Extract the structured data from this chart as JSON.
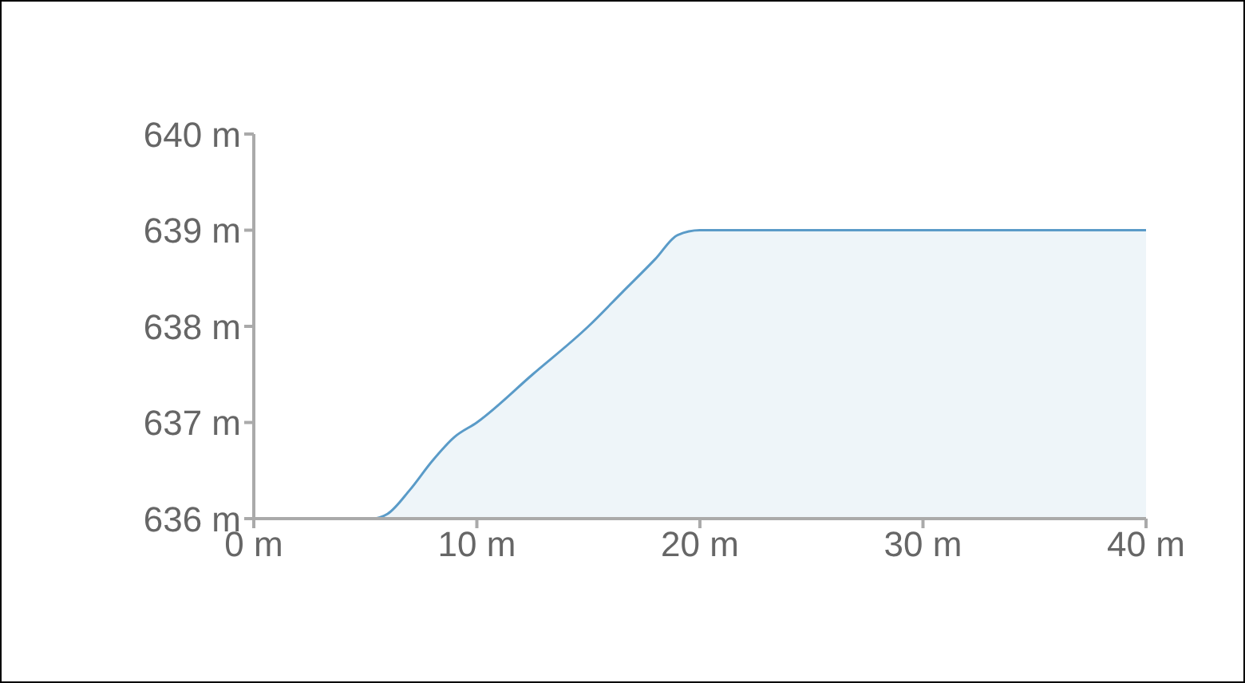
{
  "chart_data": {
    "type": "area",
    "x": [
      0,
      2.5,
      5.3,
      6,
      7,
      8,
      9,
      10,
      12.5,
      15,
      16.5,
      18,
      19,
      20,
      22.5,
      27.5,
      32.5,
      37.5,
      40
    ],
    "series": [
      {
        "color": "#5a9bc8",
        "values": [
          636,
          636,
          636,
          636.05,
          636.3,
          636.6,
          636.85,
          637,
          637.5,
          638,
          638.35,
          638.7,
          638.95,
          639,
          639,
          639,
          639,
          639,
          639
        ]
      }
    ],
    "xlim": [
      0,
      40
    ],
    "xticks": [
      {
        "value": 0,
        "label": "0 m"
      },
      {
        "value": 10,
        "label": "10 m"
      },
      {
        "value": 20,
        "label": "20 m"
      },
      {
        "value": 30,
        "label": "30 m"
      },
      {
        "value": 40,
        "label": "40 m"
      }
    ],
    "ylim": [
      636,
      640
    ],
    "yticks": [
      {
        "value": 636,
        "label": "636 m"
      },
      {
        "value": 637,
        "label": "637 m"
      },
      {
        "value": 638,
        "label": "638 m"
      },
      {
        "value": 639,
        "label": "639 m"
      },
      {
        "value": 640,
        "label": "640 m"
      }
    ],
    "grid": false,
    "legend": false
  }
}
